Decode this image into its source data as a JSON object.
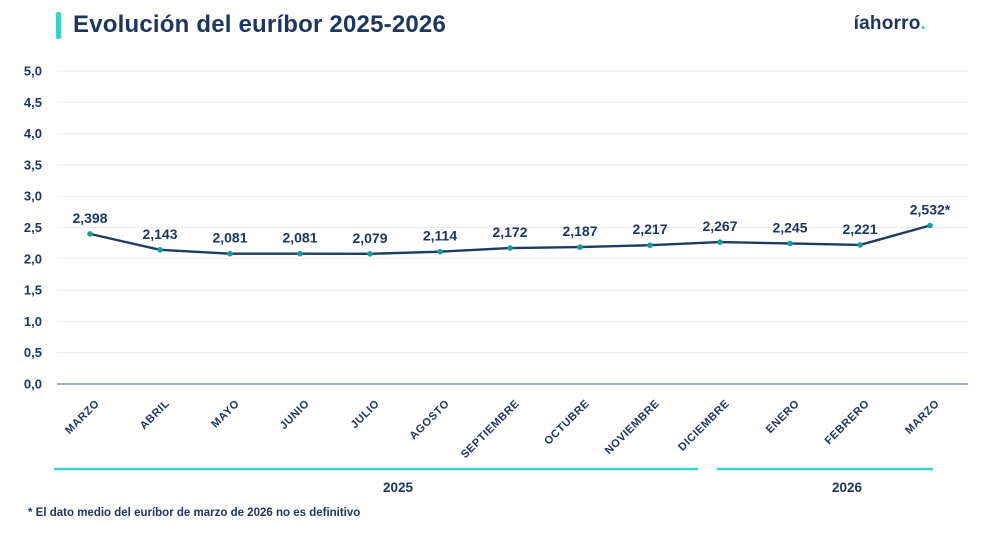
{
  "header": {
    "title": "Evolución del euríbor 2025-2026"
  },
  "logo": {
    "text": "íahorro",
    "dot": "."
  },
  "footnote": "* El dato medio del euríbor de marzo de 2026 no es definitivo",
  "colors": {
    "navy": "#1c3664",
    "teal": "#36d6c3",
    "line": "#1f3a63",
    "marker": "#12a19c",
    "grid": "#e9e9ef",
    "zero_line": "#6b7fa3"
  },
  "chart_data": {
    "type": "line",
    "title": "Evolución del euríbor 2025-2026",
    "categories": [
      "MARZO",
      "ABRIL",
      "MAYO",
      "JUNIO",
      "JULIO",
      "AGOSTO",
      "SEPTIEMBRE",
      "OCTUBRE",
      "NOVIEMBRE",
      "DICIEMBRE",
      "ENERO",
      "FEBRERO",
      "MARZO"
    ],
    "values": [
      2.398,
      2.143,
      2.081,
      2.081,
      2.079,
      2.114,
      2.172,
      2.187,
      2.217,
      2.267,
      2.245,
      2.221,
      2.532
    ],
    "point_labels": [
      "2,398",
      "2,143",
      "2,081",
      "2,081",
      "2,079",
      "2,114",
      "2,172",
      "2,187",
      "2,217",
      "2,267",
      "2,245",
      "2,221",
      "2,532*"
    ],
    "xlabel": "",
    "ylabel": "",
    "ylim": [
      0,
      5
    ],
    "y_tick_step": 0.5,
    "y_tick_labels": [
      "0,0",
      "0,5",
      "1,0",
      "1,5",
      "2,0",
      "2,5",
      "3,0",
      "3,5",
      "4,0",
      "4,5",
      "5,0"
    ],
    "grid": true,
    "legend": "none",
    "year_groups": [
      {
        "label": "2025",
        "from": 0,
        "to": 9
      },
      {
        "label": "2026",
        "from": 10,
        "to": 12
      }
    ]
  }
}
